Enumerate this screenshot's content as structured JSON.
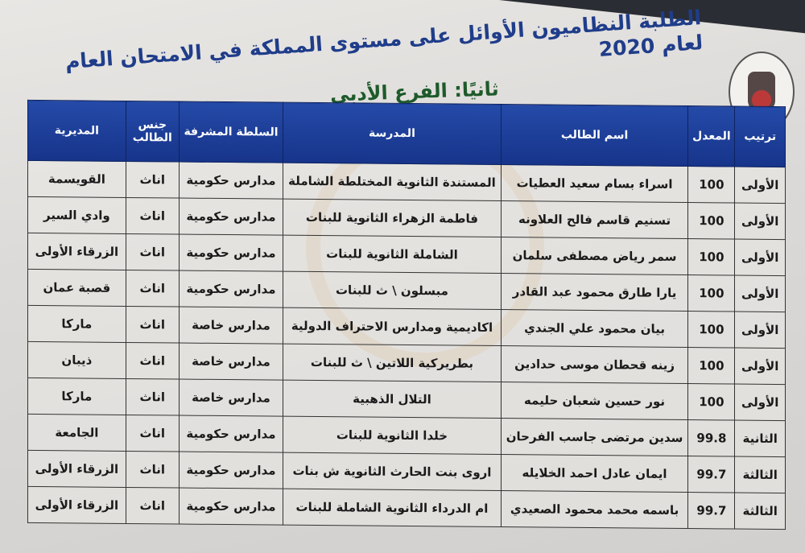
{
  "title": "الطلبة النظاميون الأوائل على مستوى المملكة في الامتحان العام لعام 2020",
  "subtitle": "ثانيًا: الفرع الأدبي",
  "colors": {
    "header_bg": "#1b3f9a",
    "title": "#1f3d8a",
    "subtitle": "#1e5a2a"
  },
  "logo": "ministry-of-education-emblem",
  "columns": [
    "ترتيب",
    "المعدل",
    "اسم الطالب",
    "المدرسة",
    "السلطة المشرفة",
    "جنس الطالب",
    "المديرية"
  ],
  "rows": [
    [
      "الأولى",
      "100",
      "اسراء بسام سعيد العطيات",
      "المستندة الثانوية المختلطة الشاملة",
      "مدارس حكومية",
      "اناث",
      "القويسمة"
    ],
    [
      "الأولى",
      "100",
      "تسنيم قاسم فالح العلاونه",
      "فاطمة الزهراء الثانوية للبنات",
      "مدارس حكومية",
      "اناث",
      "وادي السير"
    ],
    [
      "الأولى",
      "100",
      "سمر رياض مصطفى سلمان",
      "الشاملة الثانوية للبنات",
      "مدارس حكومية",
      "اناث",
      "الزرقاء الأولى"
    ],
    [
      "الأولى",
      "100",
      "يارا طارق محمود عبد القادر",
      "مبسلون \\ ث للبنات",
      "مدارس حكومية",
      "اناث",
      "قصبة عمان"
    ],
    [
      "الأولى",
      "100",
      "بيان محمود علي الجندي",
      "اكاديمية ومدارس الاحتراف الدولية",
      "مدارس خاصة",
      "اناث",
      "ماركا"
    ],
    [
      "الأولى",
      "100",
      "زينه قحطان موسى حدادين",
      "بطريركية اللاتين \\ ث للبنات",
      "مدارس خاصة",
      "اناث",
      "ذيبان"
    ],
    [
      "الأولى",
      "100",
      "نور حسين شعبان حليمه",
      "التلال الذهبية",
      "مدارس خاصة",
      "اناث",
      "ماركا"
    ],
    [
      "الثانية",
      "99.8",
      "سدين مرتضى جاسب الفرحان",
      "خلدا الثانوية للبنات",
      "مدارس حكومية",
      "اناث",
      "الجامعة"
    ],
    [
      "الثالثة",
      "99.7",
      "ايمان عادل احمد الخلايله",
      "اروى بنت الحارث الثانوية ش بنات",
      "مدارس حكومية",
      "اناث",
      "الزرقاء الأولى"
    ],
    [
      "الثالثة",
      "99.7",
      "باسمه محمد محمود الصعيدي",
      "ام الدرداء الثانوية الشاملة للبنات",
      "مدارس حكومية",
      "اناث",
      "الزرقاء الأولى"
    ]
  ]
}
